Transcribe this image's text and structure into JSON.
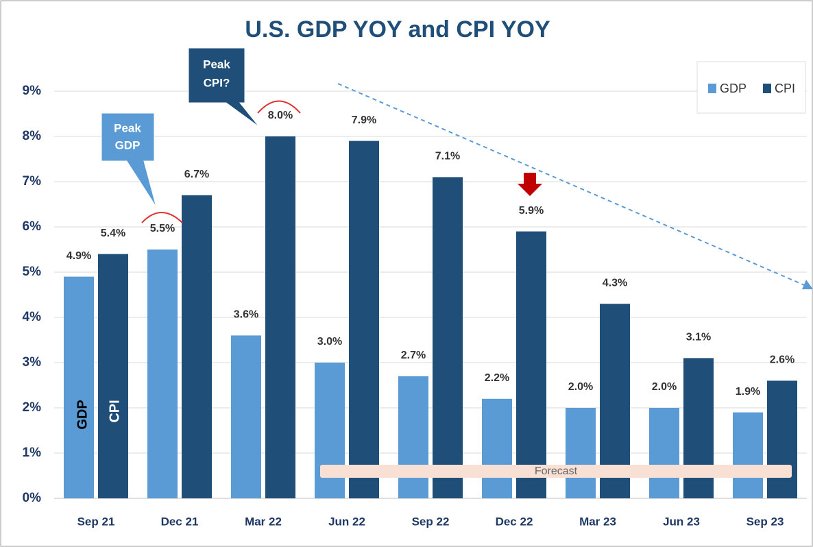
{
  "chart_data": {
    "type": "bar",
    "title": "U.S. GDP YOY and CPI YOY",
    "categories": [
      "Sep 21",
      "Dec 21",
      "Mar 22",
      "Jun 22",
      "Sep 22",
      "Dec 22",
      "Mar 23",
      "Jun 23",
      "Sep 23"
    ],
    "series": [
      {
        "name": "GDP",
        "color": "#5b9bd5",
        "values": [
          4.9,
          5.5,
          3.6,
          3.0,
          2.7,
          2.2,
          2.0,
          2.0,
          1.9
        ],
        "value_labels": [
          "4.9%",
          "5.5%",
          "3.6%",
          "3.0%",
          "2.7%",
          "2.2%",
          "2.0%",
          "2.0%",
          "1.9%"
        ]
      },
      {
        "name": "CPI",
        "color": "#1f4e79",
        "values": [
          5.4,
          6.7,
          8.0,
          7.9,
          7.1,
          5.9,
          4.3,
          3.1,
          2.6
        ],
        "value_labels": [
          "5.4%",
          "6.7%",
          "8.0%",
          "7.9%",
          "7.1%",
          "5.9%",
          "4.3%",
          "3.1%",
          "2.6%"
        ]
      }
    ],
    "ylim": [
      0,
      9
    ],
    "yticks": [
      {
        "value": 0,
        "label": "0%"
      },
      {
        "value": 1,
        "label": "1%"
      },
      {
        "value": 2,
        "label": "2%"
      },
      {
        "value": 3,
        "label": "3%"
      },
      {
        "value": 4,
        "label": "4%"
      },
      {
        "value": 5,
        "label": "5%"
      },
      {
        "value": 6,
        "label": "6%"
      },
      {
        "value": 7,
        "label": "7%"
      },
      {
        "value": 8,
        "label": "8%"
      },
      {
        "value": 9,
        "label": "9%"
      }
    ],
    "grid": true,
    "legend": "top-right",
    "annotations": {
      "peak_gdp": [
        "Peak",
        "GDP"
      ],
      "peak_cpi": [
        "Peak",
        "CPI?"
      ],
      "forecast": "Forecast",
      "gdp_bar_label": "GDP",
      "cpi_bar_label": "CPI"
    }
  }
}
